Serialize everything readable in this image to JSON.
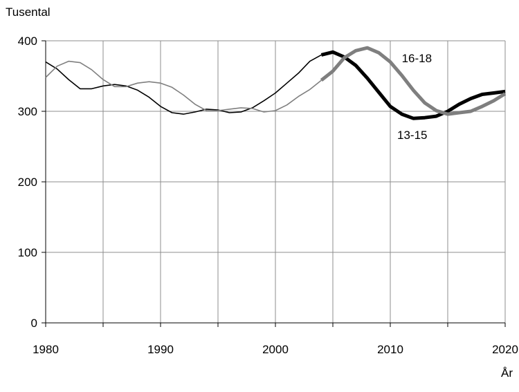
{
  "chart_data": {
    "type": "line",
    "xlabel": "År",
    "ylabel": "Tusental",
    "xlim": [
      1980,
      2020
    ],
    "ylim": [
      0,
      400
    ],
    "x_ticks": [
      1980,
      1990,
      2000,
      2010,
      2020
    ],
    "y_ticks": [
      0,
      100,
      200,
      300,
      400
    ],
    "grid": true,
    "series": [
      {
        "name": "13-15",
        "color": "#000000",
        "segments": [
          {
            "style": "thin",
            "x": [
              1980,
              1981,
              1982,
              1983,
              1984,
              1985,
              1986,
              1987,
              1988,
              1989,
              1990,
              1991,
              1992,
              1993,
              1994,
              1995,
              1996,
              1997,
              1998,
              1999,
              2000,
              2001,
              2002,
              2003,
              2004
            ],
            "y": [
              370,
              360,
              345,
              332,
              332,
              336,
              338,
              336,
              330,
              320,
              307,
              298,
              296,
              299,
              303,
              302,
              298,
              299,
              305,
              315,
              326,
              340,
              354,
              371,
              380
            ]
          },
          {
            "style": "thick",
            "x": [
              2004,
              2005,
              2006,
              2007,
              2008,
              2009,
              2010,
              2011,
              2012,
              2013,
              2014,
              2015,
              2016,
              2017,
              2018,
              2019,
              2020
            ],
            "y": [
              380,
              384,
              377,
              365,
              347,
              327,
              307,
              296,
              290,
              291,
              293,
              300,
              310,
              318,
              324,
              326,
              328
            ]
          }
        ]
      },
      {
        "name": "16-18",
        "color": "#7f7f7f",
        "segments": [
          {
            "style": "thin",
            "x": [
              1980,
              1981,
              1982,
              1983,
              1984,
              1985,
              1986,
              1987,
              1988,
              1989,
              1990,
              1991,
              1992,
              1993,
              1994,
              1995,
              1996,
              1997,
              1998,
              1999,
              2000,
              2001,
              2002,
              2003,
              2004
            ],
            "y": [
              348,
              364,
              371,
              369,
              359,
              345,
              335,
              335,
              340,
              342,
              340,
              334,
              323,
              310,
              301,
              301,
              303,
              305,
              304,
              299,
              301,
              309,
              321,
              331,
              344
            ]
          },
          {
            "style": "thick",
            "x": [
              2004,
              2005,
              2006,
              2007,
              2008,
              2009,
              2010,
              2011,
              2012,
              2013,
              2014,
              2015,
              2016,
              2017,
              2018,
              2019,
              2020
            ],
            "y": [
              344,
              357,
              376,
              386,
              390,
              383,
              370,
              351,
              330,
              312,
              301,
              296,
              298,
              300,
              307,
              315,
              325
            ]
          }
        ]
      }
    ],
    "annotations": [
      {
        "text": "16-18",
        "series": "16-18"
      },
      {
        "text": "13-15",
        "series": "13-15"
      }
    ]
  }
}
